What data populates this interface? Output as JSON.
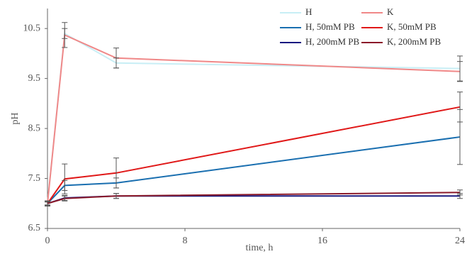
{
  "chart_data": {
    "type": "line",
    "x_label": "time, h",
    "y_label": "pH",
    "x": [
      0,
      1,
      4,
      24
    ],
    "xlim": [
      0,
      24
    ],
    "xticks": [
      0,
      8,
      16,
      24
    ],
    "ylim": [
      6.5,
      10.9
    ],
    "yticks": [
      6.5,
      7.5,
      8.5,
      9.5,
      10.5
    ],
    "grid": false,
    "legend": "upper right",
    "series": [
      {
        "name": "H",
        "color": "#c8eef5",
        "values": [
          7.0,
          10.4,
          9.81,
          9.7
        ],
        "errors": [
          0.05,
          0.1,
          0.1,
          0.25
        ]
      },
      {
        "name": "K",
        "color": "#f08888",
        "values": [
          7.0,
          10.37,
          9.91,
          9.64
        ],
        "errors": [
          0.05,
          0.25,
          0.2,
          0.2
        ]
      },
      {
        "name": "H, 50mM PB",
        "color": "#1a6fb0",
        "values": [
          7.0,
          7.36,
          7.41,
          8.33
        ],
        "errors": [
          0.05,
          0.1,
          0.1,
          0.55
        ]
      },
      {
        "name": "K, 50mM PB",
        "color": "#e01818",
        "values": [
          7.0,
          7.49,
          7.61,
          8.93
        ],
        "errors": [
          0.05,
          0.3,
          0.3,
          0.3
        ]
      },
      {
        "name": "H, 200mM PB",
        "color": "#1a1a80",
        "values": [
          7.0,
          7.11,
          7.15,
          7.15
        ],
        "errors": [
          0.03,
          0.05,
          0.05,
          0.05
        ]
      },
      {
        "name": "K, 200mM PB",
        "color": "#8b1a2a",
        "values": [
          7.0,
          7.1,
          7.15,
          7.22
        ],
        "errors": [
          0.03,
          0.05,
          0.05,
          0.05
        ]
      }
    ]
  }
}
